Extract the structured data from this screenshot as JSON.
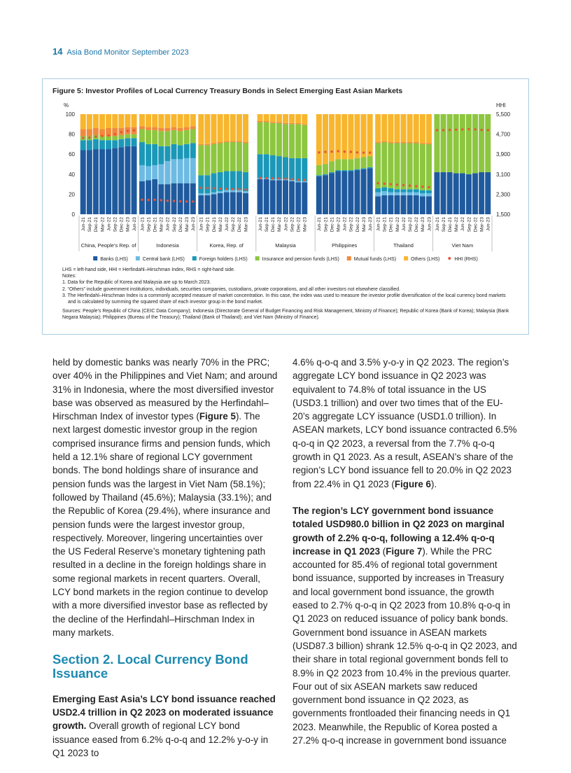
{
  "header": {
    "page_number": "14",
    "title": "Asia Bond Monitor September 2023"
  },
  "chart_data": {
    "type": "stacked-bar",
    "title": "Figure 5: Investor Profiles of Local Currency Treasury Bonds in Select Emerging East Asian Markets",
    "y_unit": "%",
    "y2_unit": "HHI",
    "ylim": [
      0,
      100
    ],
    "yticks": [
      0,
      20,
      40,
      60,
      80,
      100
    ],
    "y2lim": [
      1500,
      5500
    ],
    "y2ticks": [
      {
        "value": 1500,
        "label": "1,500"
      },
      {
        "value": 2300,
        "label": "2,300"
      },
      {
        "value": 3100,
        "label": "3,100"
      },
      {
        "value": 3900,
        "label": "3,900"
      },
      {
        "value": 4700,
        "label": "4,700"
      },
      {
        "value": 5500,
        "label": "5,500"
      }
    ],
    "series": [
      {
        "name": "Banks (LHS)",
        "color": "#1f5a9e"
      },
      {
        "name": "Central bank (LHS)",
        "color": "#6dbbe3"
      },
      {
        "name": "Foreign holders (LHS)",
        "color": "#1b98b8"
      },
      {
        "name": "Insurance and pension funds (LHS)",
        "color": "#8dc63f"
      },
      {
        "name": "Mutual funds (LHS)",
        "color": "#ef8a3d"
      },
      {
        "name": "Others (LHS)",
        "color": "#f8b62e"
      },
      {
        "name": "HHI (RHS)",
        "color": "#e4553b",
        "axis": "y2"
      }
    ],
    "groups": [
      {
        "name": "China, People’s Rep. of",
        "categories": [
          "Jun-21",
          "Sep-21",
          "Dec-21",
          "Mar-22",
          "Jun-22",
          "Sep-22",
          "Dec-22",
          "Mar-23",
          "Jun-23"
        ],
        "values": [
          [
            64,
            64,
            65,
            65,
            65,
            66,
            67,
            68,
            68
          ],
          [
            0,
            0,
            0,
            0,
            0,
            0,
            0,
            0,
            0
          ],
          [
            10,
            10,
            10,
            9,
            9,
            8,
            8,
            8,
            8
          ],
          [
            4,
            4,
            4,
            4,
            4,
            4,
            4,
            4,
            4
          ],
          [
            7,
            7,
            7,
            7,
            8,
            8,
            7,
            7,
            7
          ],
          [
            15,
            15,
            14,
            15,
            14,
            14,
            14,
            13,
            13
          ],
          [
            4550,
            4560,
            4600,
            4630,
            4650,
            4700,
            4780,
            4830,
            4850
          ]
        ]
      },
      {
        "name": "Indonesia",
        "categories": [
          "Jun-21",
          "Sep-21",
          "Dec-21",
          "Mar-22",
          "Jun-22",
          "Sep-22",
          "Dec-22",
          "Mar-23",
          "Jun-23"
        ],
        "values": [
          [
            33,
            34,
            35,
            30,
            30,
            31,
            31,
            31,
            31
          ],
          [
            16,
            14,
            14,
            20,
            23,
            24,
            24,
            25,
            25
          ],
          [
            23,
            22,
            21,
            18,
            15,
            15,
            14,
            14,
            15
          ],
          [
            13,
            14,
            14,
            15,
            15,
            14,
            14,
            14,
            14
          ],
          [
            3,
            3,
            3,
            3,
            3,
            3,
            3,
            3,
            3
          ],
          [
            12,
            13,
            13,
            14,
            14,
            13,
            14,
            13,
            12
          ],
          [
            2080,
            2070,
            2080,
            2060,
            2040,
            2030,
            2020,
            2010,
            2010
          ]
        ]
      },
      {
        "name": "Korea, Rep. of",
        "categories": [
          "Jun-21",
          "Sep-21",
          "Dec-21",
          "Mar-22",
          "Jun-22",
          "Sep-22",
          "Dec-22",
          "Mar-23"
        ],
        "values": [
          [
            19,
            19,
            20,
            21,
            22,
            22,
            22,
            21
          ],
          [
            2,
            2,
            2,
            2,
            2,
            2,
            2,
            2
          ],
          [
            18,
            18,
            19,
            19,
            19,
            19,
            19,
            19
          ],
          [
            30,
            30,
            29,
            29,
            29,
            29,
            29,
            29
          ],
          [
            1,
            1,
            1,
            1,
            1,
            1,
            1,
            1
          ],
          [
            30,
            30,
            29,
            28,
            27,
            27,
            27,
            28
          ],
          [
            2560,
            2550,
            2540,
            2520,
            2510,
            2500,
            2500,
            2490
          ]
        ]
      },
      {
        "name": "Malaysia",
        "categories": [
          "Jun-21",
          "Sep-21",
          "Dec-21",
          "Mar-22",
          "Jun-22",
          "Sep-22",
          "Dec-22",
          "Mar-23"
        ],
        "values": [
          [
            35,
            35,
            34,
            34,
            34,
            33,
            32,
            32
          ],
          [
            1,
            1,
            1,
            1,
            1,
            1,
            1,
            1
          ],
          [
            24,
            24,
            24,
            23,
            22,
            22,
            23,
            23
          ],
          [
            32,
            32,
            32,
            33,
            33,
            34,
            34,
            33
          ],
          [
            1,
            1,
            1,
            1,
            1,
            1,
            1,
            1
          ],
          [
            7,
            7,
            8,
            8,
            9,
            9,
            9,
            10
          ],
          [
            2950,
            2940,
            2930,
            2930,
            2920,
            2900,
            2880,
            2870
          ]
        ]
      },
      {
        "name": "Philippines",
        "categories": [
          "Jun-21",
          "Sep-21",
          "Dec-21",
          "Mar-22",
          "Jun-22",
          "Sep-22",
          "Dec-22",
          "Mar-23",
          "Jun-23"
        ],
        "values": [
          [
            38,
            39,
            41,
            43,
            43,
            43,
            44,
            45,
            46
          ],
          [
            0,
            0,
            0,
            0,
            0,
            0,
            0,
            0,
            0
          ],
          [
            1,
            1,
            1,
            1,
            1,
            1,
            1,
            1,
            1
          ],
          [
            10,
            10,
            11,
            11,
            11,
            11,
            11,
            11,
            11
          ],
          [
            0,
            0,
            0,
            0,
            0,
            0,
            0,
            0,
            0
          ],
          [
            51,
            50,
            47,
            45,
            45,
            45,
            44,
            43,
            42
          ],
          [
            3970,
            3990,
            4000,
            4020,
            4000,
            3990,
            3970,
            3960,
            3960
          ]
        ]
      },
      {
        "name": "Thailand",
        "categories": [
          "Jun-21",
          "Sep-21",
          "Dec-21",
          "Mar-22",
          "Jun-22",
          "Sep-22",
          "Dec-22",
          "Mar-23",
          "Jun-23"
        ],
        "values": [
          [
            18,
            19,
            19,
            19,
            19,
            19,
            19,
            18,
            18
          ],
          [
            4,
            4,
            3,
            3,
            3,
            3,
            3,
            3,
            3
          ],
          [
            4,
            4,
            4,
            3,
            3,
            3,
            3,
            3,
            3
          ],
          [
            45,
            45,
            45,
            46,
            46,
            46,
            46,
            46,
            46
          ],
          [
            1,
            1,
            1,
            1,
            1,
            1,
            1,
            1,
            1
          ],
          [
            28,
            27,
            28,
            28,
            28,
            28,
            28,
            29,
            29
          ],
          [
            2740,
            2720,
            2700,
            2680,
            2660,
            2640,
            2620,
            2600,
            2580
          ]
        ]
      },
      {
        "name": "Viet Nam",
        "categories": [
          "Jun-21",
          "Sep-21",
          "Dec-21",
          "Mar-22",
          "Jun-22",
          "Sep-22",
          "Dec-22",
          "Mar-23",
          "Jun-23"
        ],
        "values": [
          [
            42,
            42,
            42,
            41,
            41,
            40,
            41,
            42,
            42
          ],
          [
            0,
            0,
            0,
            0,
            0,
            0,
            0,
            0,
            0
          ],
          [
            0,
            0,
            0,
            0,
            0,
            0,
            0,
            0,
            0
          ],
          [
            58,
            58,
            58,
            59,
            59,
            60,
            59,
            58,
            58
          ],
          [
            0,
            0,
            0,
            0,
            0,
            0,
            0,
            0,
            0
          ],
          [
            0,
            0,
            0,
            0,
            0,
            0,
            0,
            0,
            0
          ],
          [
            4860,
            4860,
            4870,
            4880,
            4890,
            4900,
            4890,
            4870,
            4860
          ]
        ]
      }
    ]
  },
  "figure_notes": {
    "abbreviations": "LHS = left-hand side, HHI = Herfindahl–Hirschman Index, RHS = right-hand side.",
    "notes_heading": "Notes:",
    "notes": [
      "1. Data for the Republic of Korea and Malaysia are up to March 2023.",
      "2. “Others” include government institutions, individuals, securities companies, custodians, private corporations, and all other investors not elsewhere classified.",
      "3. The Herfindahl–Hirschman Index is a commonly accepted measure of market concentration. In this case, the index was used to measure the investor profile diversification of the local currency bond markets and is calculated by summing the squared share of each investor group in the bond market."
    ],
    "sources": "Sources: People’s Republic of China (CEIC Data Company); Indonesia (Directorate General of Budget Financing and Risk Management, Ministry of Finance); Republic of Korea (Bank of Korea); Malaysia (Bank Negara Malaysia); Philippines (Bureau of the Treasury); Thailand (Bank of Thailand); and Viet Nam (Ministry of Finance)."
  },
  "body": {
    "columns": [
      [
        {
          "type": "paragraph",
          "runs": [
            {
              "text": "held by domestic banks was nearly 70% in the PRC; over 40% in the Philippines and Viet Nam; and around 31% in Indonesia, where the most diversified investor base was observed as measured by the Herfindahl–Hirschman Index of investor types ("
            },
            {
              "text": "Figure 5",
              "bold": true
            },
            {
              "text": "). The next largest domestic investor group in the region comprised insurance firms and pension funds, which held a 12.1% share of regional LCY government bonds. The bond holdings share of insurance and pension funds was the largest in Viet Nam (58.1%); followed by Thailand (45.6%); Malaysia (33.1%); and the Republic of Korea (29.4%), where insurance and pension funds were the largest investor group, respectively. Moreover, lingering uncertainties over the US Federal Reserve’s monetary tightening path resulted in a decline in the foreign holdings share in some regional markets in recent quarters. Overall, LCY bond markets in the region continue to develop with a more diversified investor base as reflected by the decline of the Herfindahl–Hirschman Index in many markets."
            }
          ]
        },
        {
          "type": "heading",
          "text": "Section 2. Local Currency Bond Issuance"
        },
        {
          "type": "paragraph",
          "runs": [
            {
              "text": "Emerging East Asia’s LCY bond issuance reached USD2.4 trillion in Q2 2023 on moderated issuance growth.",
              "bold": true
            },
            {
              "text": " Overall growth of regional LCY bond issuance eased from 6.2% q-o-q and 12.2% y-o-y in Q1 2023 to"
            }
          ]
        }
      ],
      [
        {
          "type": "paragraph",
          "runs": [
            {
              "text": "4.6% q-o-q and 3.5% y-o-y in Q2 2023. The region’s aggregate LCY bond issuance in Q2 2023 was equivalent to 74.8% of total issuance in the US (USD3.1 trillion) and over two times that of the EU-20’s aggregate LCY issuance (USD1.0 trillion). In ASEAN markets, LCY bond issuance contracted 6.5% q-o-q in Q2 2023, a reversal from the 7.7% q-o-q growth in Q1 2023. As a result, ASEAN’s share of the region’s LCY bond issuance fell to 20.0% in Q2 2023 from 22.4% in Q1 2023 ("
            },
            {
              "text": "Figure 6",
              "bold": true
            },
            {
              "text": ")."
            }
          ]
        },
        {
          "type": "paragraph",
          "runs": [
            {
              "text": "The region’s LCY government bond issuance totaled USD980.0 billion in Q2 2023 on marginal growth of 2.2% q-o-q, following a 12.4% q-o-q increase in Q1 2023",
              "bold": true
            },
            {
              "text": " ("
            },
            {
              "text": "Figure 7",
              "bold": true
            },
            {
              "text": "). While the PRC accounted for 85.4% of regional total government bond issuance, supported by increases in Treasury and local government bond issuance, the growth eased to 2.7% q-o-q in Q2 2023 from 10.8% q-o-q in Q1 2023 on reduced issuance of policy bank bonds. Government bond issuance in ASEAN markets (USD87.3 billion) shrank 12.5% q-o-q in Q2 2023, and their share in total regional government bonds fell to 8.9% in Q2 2023 from 10.4% in the previous quarter. Four out of six ASEAN markets saw reduced government bond issuance in Q2 2023, as governments frontloaded their financing needs in Q1 2023. Meanwhile, the Republic of Korea posted a 27.2% q-o-q increase in government bond issuance"
            }
          ]
        }
      ]
    ]
  }
}
